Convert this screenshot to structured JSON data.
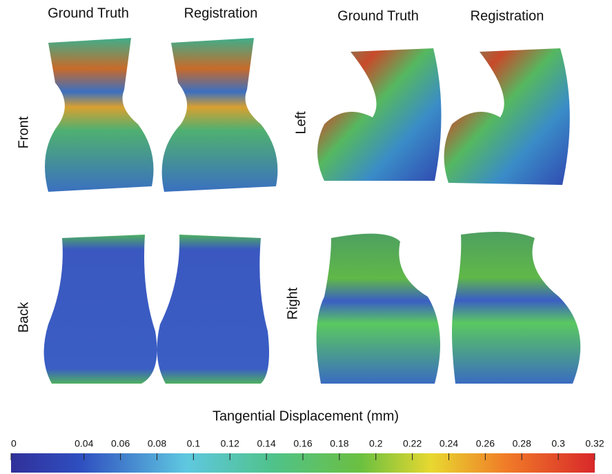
{
  "column_headers": [
    "Ground Truth",
    "Registration",
    "Ground Truth",
    "Registration"
  ],
  "row_labels": [
    "Front",
    "Back",
    "Left",
    "Right"
  ],
  "colorbar": {
    "title": "Tangential Displacement (mm)",
    "range": [
      0,
      0.32
    ],
    "ticks": [
      0,
      0.04,
      0.06,
      0.08,
      0.1,
      0.12,
      0.14,
      0.16,
      0.18,
      0.2,
      0.22,
      0.24,
      0.26,
      0.28,
      0.3,
      0.32
    ]
  }
}
